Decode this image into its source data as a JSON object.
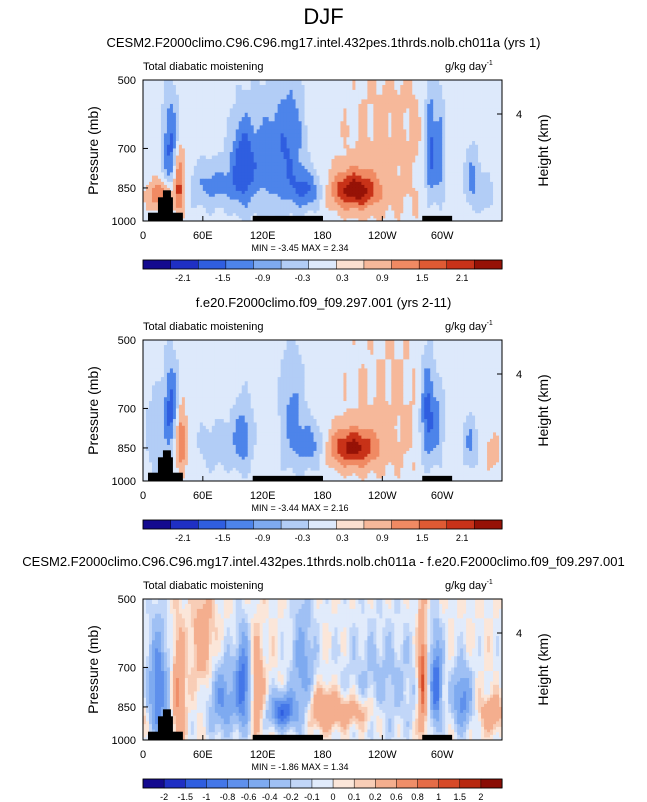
{
  "page": {
    "title": "DJF"
  },
  "chart_data": [
    {
      "type": "heatmap",
      "title": "CESM2.F2000climo.C96.C96.mg17.intel.432pes.1thrds.nolb.ch011a (yrs 1)",
      "left_label": "Total diabatic moistening",
      "units": "g/kg day",
      "units_exp": "-1",
      "ylabel": "Pressure (mb)",
      "ylabel_right": "Height (km)",
      "yticks": [
        "500",
        "700",
        "850",
        "1000"
      ],
      "ytick_values": [
        500,
        700,
        850,
        1000
      ],
      "right_ticks": [
        "4"
      ],
      "xticks": [
        "0",
        "60E",
        "120E",
        "180",
        "120W",
        "60W"
      ],
      "xtick_values": [
        0,
        60,
        120,
        180,
        240,
        300
      ],
      "xlim": [
        0,
        360
      ],
      "ylim": [
        1000,
        500
      ],
      "stats": "MIN =  -3.45  MAX =  2.34",
      "min": -3.45,
      "max": 2.34,
      "colorbar_labels": [
        "-2.1",
        "-1.5",
        "-0.9",
        "-0.3",
        "0.3",
        "0.9",
        "1.5",
        "2.1"
      ],
      "features": [
        {
          "lon": 28,
          "p": 700,
          "amp": -1.7,
          "wx": 6,
          "wy": 120
        },
        {
          "lon": 36,
          "p": 820,
          "amp": 2.0,
          "wx": 4,
          "wy": 100
        },
        {
          "lon": 18,
          "p": 880,
          "amp": 1.6,
          "wx": 9,
          "wy": 45
        },
        {
          "lon": 70,
          "p": 840,
          "amp": -1.1,
          "wx": 16,
          "wy": 70
        },
        {
          "lon": 100,
          "p": 760,
          "amp": -1.8,
          "wx": 9,
          "wy": 120
        },
        {
          "lon": 130,
          "p": 740,
          "amp": -1.3,
          "wx": 16,
          "wy": 150
        },
        {
          "lon": 150,
          "p": 650,
          "amp": -0.9,
          "wx": 10,
          "wy": 150
        },
        {
          "lon": 165,
          "p": 860,
          "amp": -1.5,
          "wx": 12,
          "wy": 60
        },
        {
          "lon": 212,
          "p": 860,
          "amp": 2.3,
          "wx": 17,
          "wy": 55
        },
        {
          "lon": 288,
          "p": 700,
          "amp": -1.9,
          "wx": 4,
          "wy": 150
        },
        {
          "lon": 298,
          "p": 720,
          "amp": -1.5,
          "wx": 4,
          "wy": 140
        },
        {
          "lon": 330,
          "p": 810,
          "amp": -1.2,
          "wx": 6,
          "wy": 90
        },
        {
          "lon": 345,
          "p": 880,
          "amp": -0.7,
          "wx": 6,
          "wy": 60
        },
        {
          "lon": 250,
          "p": 700,
          "amp": 0.4,
          "wx": 50,
          "wy": 300
        }
      ],
      "topography": [
        {
          "from": 5,
          "to": 40,
          "p": 960
        },
        {
          "from": 15,
          "to": 30,
          "p": 890
        },
        {
          "from": 20,
          "to": 28,
          "p": 860
        },
        {
          "from": 110,
          "to": 180,
          "p": 975
        },
        {
          "from": 280,
          "to": 310,
          "p": 975
        }
      ]
    },
    {
      "type": "heatmap",
      "title": "f.e20.F2000climo.f09_f09.297.001 (yrs 2-11)",
      "left_label": "Total diabatic moistening",
      "units": "g/kg day",
      "units_exp": "-1",
      "ylabel": "Pressure (mb)",
      "ylabel_right": "Height (km)",
      "yticks": [
        "500",
        "700",
        "850",
        "1000"
      ],
      "ytick_values": [
        500,
        700,
        850,
        1000
      ],
      "right_ticks": [
        "4"
      ],
      "xticks": [
        "0",
        "60E",
        "120E",
        "180",
        "120W",
        "60W"
      ],
      "xtick_values": [
        0,
        60,
        120,
        180,
        240,
        300
      ],
      "xlim": [
        0,
        360
      ],
      "ylim": [
        1000,
        500
      ],
      "stats": "MIN =  -3.44  MAX =  2.16",
      "min": -3.44,
      "max": 2.16,
      "colorbar_labels": [
        "-2.1",
        "-1.5",
        "-0.9",
        "-0.3",
        "0.3",
        "0.9",
        "1.5",
        "2.1"
      ],
      "features": [
        {
          "lon": 28,
          "p": 700,
          "amp": -1.7,
          "wx": 5,
          "wy": 110
        },
        {
          "lon": 38,
          "p": 820,
          "amp": 1.6,
          "wx": 4,
          "wy": 90
        },
        {
          "lon": 12,
          "p": 800,
          "amp": -0.7,
          "wx": 8,
          "wy": 120
        },
        {
          "lon": 75,
          "p": 840,
          "amp": -0.6,
          "wx": 16,
          "wy": 80
        },
        {
          "lon": 100,
          "p": 800,
          "amp": -1.2,
          "wx": 7,
          "wy": 100
        },
        {
          "lon": 150,
          "p": 720,
          "amp": -1.1,
          "wx": 9,
          "wy": 160
        },
        {
          "lon": 170,
          "p": 840,
          "amp": -1.3,
          "wx": 10,
          "wy": 70
        },
        {
          "lon": 210,
          "p": 850,
          "amp": 2.1,
          "wx": 18,
          "wy": 55
        },
        {
          "lon": 285,
          "p": 720,
          "amp": -1.9,
          "wx": 5,
          "wy": 140
        },
        {
          "lon": 296,
          "p": 760,
          "amp": -1.2,
          "wx": 5,
          "wy": 120
        },
        {
          "lon": 328,
          "p": 830,
          "amp": -1.1,
          "wx": 6,
          "wy": 80
        },
        {
          "lon": 352,
          "p": 870,
          "amp": 0.7,
          "wx": 6,
          "wy": 50
        },
        {
          "lon": 250,
          "p": 700,
          "amp": 0.35,
          "wx": 50,
          "wy": 300
        }
      ],
      "topography": [
        {
          "from": 5,
          "to": 40,
          "p": 960
        },
        {
          "from": 15,
          "to": 30,
          "p": 890
        },
        {
          "from": 20,
          "to": 28,
          "p": 860
        },
        {
          "from": 110,
          "to": 180,
          "p": 975
        },
        {
          "from": 280,
          "to": 310,
          "p": 975
        }
      ]
    },
    {
      "type": "heatmap",
      "title": "CESM2.F2000climo.C96.C96.mg17.intel.432pes.1thrds.nolb.ch011a - f.e20.F2000climo.f09_f09.297.001",
      "left_label": "Total diabatic moistening",
      "units": "g/kg day",
      "units_exp": "-1",
      "ylabel": "Pressure (mb)",
      "ylabel_right": "Height (km)",
      "yticks": [
        "500",
        "700",
        "850",
        "1000"
      ],
      "ytick_values": [
        500,
        700,
        850,
        1000
      ],
      "right_ticks": [
        "4"
      ],
      "xticks": [
        "0",
        "60E",
        "120E",
        "180",
        "120W",
        "60W"
      ],
      "xtick_values": [
        0,
        60,
        120,
        180,
        240,
        300
      ],
      "xlim": [
        0,
        360
      ],
      "ylim": [
        1000,
        500
      ],
      "stats": "MIN =  -1.86  MAX =  1.34",
      "min": -1.86,
      "max": 1.34,
      "colorbar_labels": [
        "-2",
        "-1.5",
        "-1",
        "-0.8",
        "-0.6",
        "-0.4",
        "-0.2",
        "-0.1",
        "0",
        "0.1",
        "0.2",
        "0.6",
        "0.8",
        "1",
        "1.5",
        "2"
      ],
      "features": [
        {
          "lon": 15,
          "p": 780,
          "amp": -0.8,
          "wx": 7,
          "wy": 150
        },
        {
          "lon": 36,
          "p": 800,
          "amp": 0.7,
          "wx": 4,
          "wy": 140
        },
        {
          "lon": 60,
          "p": 620,
          "amp": 0.4,
          "wx": 8,
          "wy": 100
        },
        {
          "lon": 80,
          "p": 820,
          "amp": -0.6,
          "wx": 10,
          "wy": 100
        },
        {
          "lon": 100,
          "p": 760,
          "amp": -0.9,
          "wx": 5,
          "wy": 120
        },
        {
          "lon": 115,
          "p": 780,
          "amp": 0.5,
          "wx": 4,
          "wy": 120
        },
        {
          "lon": 140,
          "p": 870,
          "amp": -1.0,
          "wx": 9,
          "wy": 50
        },
        {
          "lon": 160,
          "p": 700,
          "amp": -0.5,
          "wx": 8,
          "wy": 150
        },
        {
          "lon": 180,
          "p": 860,
          "amp": 0.5,
          "wx": 10,
          "wy": 60
        },
        {
          "lon": 210,
          "p": 870,
          "amp": 0.4,
          "wx": 18,
          "wy": 50
        },
        {
          "lon": 240,
          "p": 760,
          "amp": -0.25,
          "wx": 30,
          "wy": 150
        },
        {
          "lon": 280,
          "p": 740,
          "amp": 1.1,
          "wx": 3,
          "wy": 140
        },
        {
          "lon": 294,
          "p": 760,
          "amp": -0.9,
          "wx": 4,
          "wy": 120
        },
        {
          "lon": 320,
          "p": 820,
          "amp": -0.7,
          "wx": 7,
          "wy": 90
        },
        {
          "lon": 350,
          "p": 880,
          "amp": 0.5,
          "wx": 8,
          "wy": 50
        }
      ],
      "topography": [
        {
          "from": 5,
          "to": 40,
          "p": 960
        },
        {
          "from": 15,
          "to": 30,
          "p": 890
        },
        {
          "from": 20,
          "to": 28,
          "p": 860
        },
        {
          "from": 110,
          "to": 180,
          "p": 975
        },
        {
          "from": 280,
          "to": 310,
          "p": 975
        }
      ]
    }
  ]
}
